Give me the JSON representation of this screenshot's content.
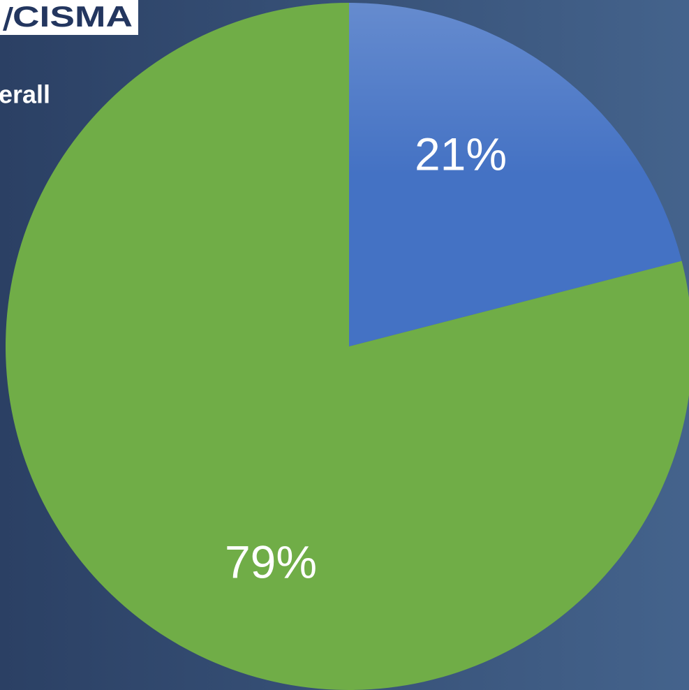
{
  "logo": "CISMA",
  "chart_data": {
    "type": "pie",
    "title": "erall",
    "values": [
      21,
      79
    ],
    "value_labels": [
      "21%",
      "79%"
    ],
    "colors": [
      "#4472c4",
      "#70ad47"
    ]
  }
}
